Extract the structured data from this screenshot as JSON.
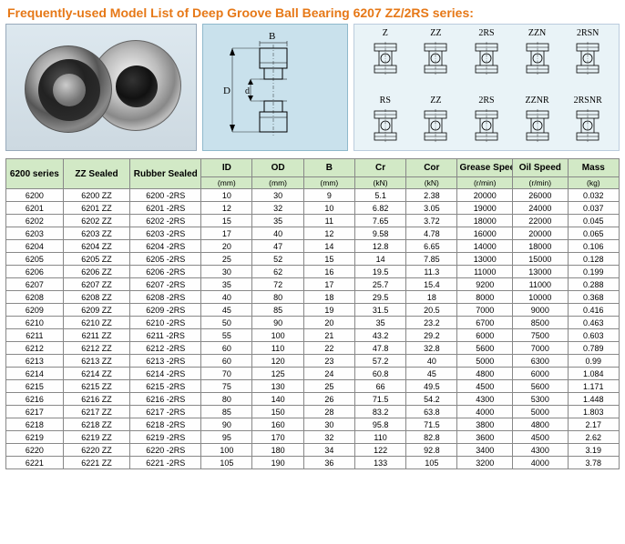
{
  "title": "Frequently-used Model List of Deep Groove Ball Bearing 6207 ZZ/2RS series:",
  "diagram_labels": {
    "B": "B",
    "D": "D",
    "d": "d"
  },
  "seal_types_row1": [
    {
      "label": "Z"
    },
    {
      "label": "ZZ"
    },
    {
      "label": "2RS"
    },
    {
      "label": "ZZN"
    },
    {
      "label": "2RSN"
    }
  ],
  "seal_types_row2": [
    {
      "label": "RS"
    },
    {
      "label": "ZZ"
    },
    {
      "label": "2RS"
    },
    {
      "label": "ZZNR"
    },
    {
      "label": "2RSNR"
    }
  ],
  "columns": {
    "series": "6200 series",
    "zz": "ZZ Sealed",
    "rubber": "Rubber Sealed",
    "id": "ID",
    "od": "OD",
    "b": "B",
    "cr": "Cr",
    "cor": "Cor",
    "grease": "Grease Speed",
    "oil": "Oil Speed",
    "mass": "Mass"
  },
  "units": {
    "id": "(mm)",
    "od": "(mm)",
    "b": "(mm)",
    "cr": "(kN)",
    "cor": "(kN)",
    "grease": "(r/min)",
    "oil": "(r/min)",
    "mass": "(kg)"
  },
  "rows": [
    [
      "6200",
      "6200 ZZ",
      "6200 -2RS",
      "10",
      "30",
      "9",
      "5.1",
      "2.38",
      "20000",
      "26000",
      "0.032"
    ],
    [
      "6201",
      "6201 ZZ",
      "6201 -2RS",
      "12",
      "32",
      "10",
      "6.82",
      "3.05",
      "19000",
      "24000",
      "0.037"
    ],
    [
      "6202",
      "6202 ZZ",
      "6202 -2RS",
      "15",
      "35",
      "11",
      "7.65",
      "3.72",
      "18000",
      "22000",
      "0.045"
    ],
    [
      "6203",
      "6203 ZZ",
      "6203 -2RS",
      "17",
      "40",
      "12",
      "9.58",
      "4.78",
      "16000",
      "20000",
      "0.065"
    ],
    [
      "6204",
      "6204 ZZ",
      "6204 -2RS",
      "20",
      "47",
      "14",
      "12.8",
      "6.65",
      "14000",
      "18000",
      "0.106"
    ],
    [
      "6205",
      "6205 ZZ",
      "6205 -2RS",
      "25",
      "52",
      "15",
      "14",
      "7.85",
      "13000",
      "15000",
      "0.128"
    ],
    [
      "6206",
      "6206 ZZ",
      "6206 -2RS",
      "30",
      "62",
      "16",
      "19.5",
      "11.3",
      "11000",
      "13000",
      "0.199"
    ],
    [
      "6207",
      "6207 ZZ",
      "6207 -2RS",
      "35",
      "72",
      "17",
      "25.7",
      "15.4",
      "9200",
      "11000",
      "0.288"
    ],
    [
      "6208",
      "6208 ZZ",
      "6208 -2RS",
      "40",
      "80",
      "18",
      "29.5",
      "18",
      "8000",
      "10000",
      "0.368"
    ],
    [
      "6209",
      "6209 ZZ",
      "6209 -2RS",
      "45",
      "85",
      "19",
      "31.5",
      "20.5",
      "7000",
      "9000",
      "0.416"
    ],
    [
      "6210",
      "6210 ZZ",
      "6210 -2RS",
      "50",
      "90",
      "20",
      "35",
      "23.2",
      "6700",
      "8500",
      "0.463"
    ],
    [
      "6211",
      "6211 ZZ",
      "6211 -2RS",
      "55",
      "100",
      "21",
      "43.2",
      "29.2",
      "6000",
      "7500",
      "0.603"
    ],
    [
      "6212",
      "6212 ZZ",
      "6212 -2RS",
      "60",
      "110",
      "22",
      "47.8",
      "32.8",
      "5600",
      "7000",
      "0.789"
    ],
    [
      "6213",
      "6213 ZZ",
      "6213 -2RS",
      "60",
      "120",
      "23",
      "57.2",
      "40",
      "5000",
      "6300",
      "0.99"
    ],
    [
      "6214",
      "6214 ZZ",
      "6214 -2RS",
      "70",
      "125",
      "24",
      "60.8",
      "45",
      "4800",
      "6000",
      "1.084"
    ],
    [
      "6215",
      "6215 ZZ",
      "6215 -2RS",
      "75",
      "130",
      "25",
      "66",
      "49.5",
      "4500",
      "5600",
      "1.171"
    ],
    [
      "6216",
      "6216 ZZ",
      "6216 -2RS",
      "80",
      "140",
      "26",
      "71.5",
      "54.2",
      "4300",
      "5300",
      "1.448"
    ],
    [
      "6217",
      "6217 ZZ",
      "6217 -2RS",
      "85",
      "150",
      "28",
      "83.2",
      "63.8",
      "4000",
      "5000",
      "1.803"
    ],
    [
      "6218",
      "6218 ZZ",
      "6218 -2RS",
      "90",
      "160",
      "30",
      "95.8",
      "71.5",
      "3800",
      "4800",
      "2.17"
    ],
    [
      "6219",
      "6219 ZZ",
      "6219 -2RS",
      "95",
      "170",
      "32",
      "110",
      "82.8",
      "3600",
      "4500",
      "2.62"
    ],
    [
      "6220",
      "6220 ZZ",
      "6220 -2RS",
      "100",
      "180",
      "34",
      "122",
      "92.8",
      "3400",
      "4300",
      "3.19"
    ],
    [
      "6221",
      "6221 ZZ",
      "6221 -2RS",
      "105",
      "190",
      "36",
      "133",
      "105",
      "3200",
      "4000",
      "3.78"
    ]
  ],
  "style": {
    "title_color": "#e67817",
    "header_bg": "#d2e9c6",
    "border_color": "#888888",
    "photo_bg": "#d3e1ea",
    "diag_bg": "#c9e1ec",
    "types_bg": "#e9f3f7",
    "font_body": 9,
    "font_header": 10,
    "font_title": 14
  }
}
